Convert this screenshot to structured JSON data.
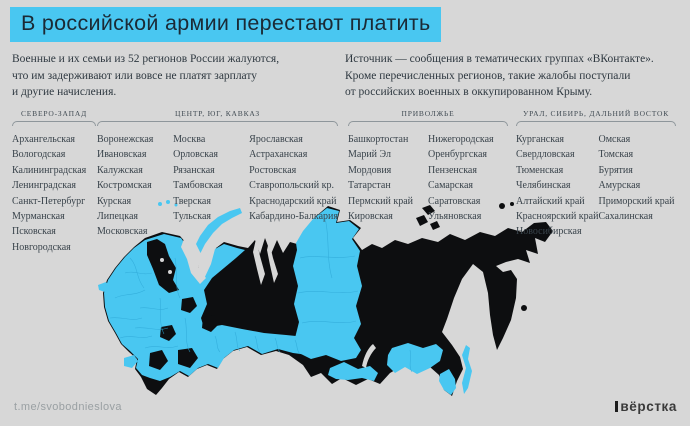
{
  "title": "В российской армии перестают платить",
  "intro": {
    "left": "Военные и их семьи из 52 регионов России жалуются,\nчто им задерживают или вовсе не платят зарплату\nи другие начисления.",
    "right": "Источник — сообщения в тематических группах «ВКонтакте».\nКроме перечисленных регионов, такие жалобы поступали\nот российских военных в оккупированном Крыму."
  },
  "region_groups": [
    {
      "label": "СЕВЕРО-ЗАПАД",
      "columns": [
        [
          "Архангельская",
          "Вологодская",
          "Калининградская",
          "Ленинградская",
          "Санкт-Петербург",
          "Мурманская",
          "Псковская",
          "Новгородская"
        ]
      ]
    },
    {
      "label": "ЦЕНТР, ЮГ, КАВКАЗ",
      "columns": [
        [
          "Воронежская",
          "Ивановская",
          "Калужская",
          "Костромская",
          "Курская",
          "Липецкая",
          "Московская"
        ],
        [
          "Москва",
          "Орловская",
          "Рязанская",
          "Тамбовская",
          "Тверская",
          "Тульская"
        ],
        [
          "Ярославская",
          "Астраханская",
          "Ростовская",
          "Ставропольский кр.",
          "Краснодарский край",
          "Кабардино-Балкария"
        ]
      ]
    },
    {
      "label": "ПРИВОЛЖЬЕ",
      "columns": [
        [
          "Башкортостан",
          "Марий Эл",
          "Мордовия",
          "Татарстан",
          "Пермский край",
          "Кировская"
        ],
        [
          "Нижегородская",
          "Оренбургская",
          "Пензенская",
          "Самарская",
          "Саратовская",
          "Ульяновская"
        ]
      ]
    },
    {
      "label": "УРАЛ, СИБИРЬ, ДАЛЬНИЙ ВОСТОК",
      "columns": [
        [
          "Курганская",
          "Свердловская",
          "Тюменская",
          "Челябинская",
          "Алтайский край",
          "Красноярский край",
          "Новосибирская"
        ],
        [
          "Омская",
          "Томская",
          "Бурятия",
          "Амурская",
          "Приморский край",
          "Сахалинская"
        ]
      ]
    }
  ],
  "map": {
    "description": "Карта России: регионы с жалобами выделены голубым, остальные — чёрным",
    "highlight_meaning": "регионы, откуда поступали жалобы"
  },
  "footer": {
    "link": "t.me/svobodnieslova",
    "logo": "вёрстка"
  },
  "colors": {
    "background": "#d7d7d7",
    "accent": "#49c7f1",
    "accent_dark": "#2fa9d8",
    "map_base": "#0d0e10",
    "title_ink": "#1b2a35"
  }
}
